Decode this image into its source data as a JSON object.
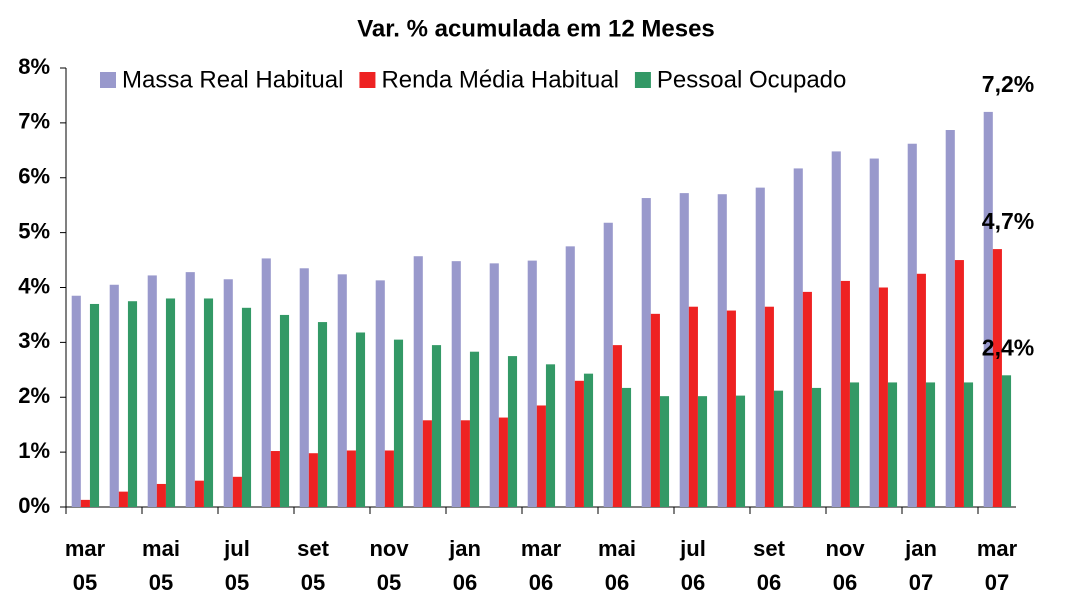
{
  "chart_data": {
    "type": "bar",
    "title": "Var. % acumulada em 12 Meses",
    "categories": [
      [
        "mar",
        "05"
      ],
      null,
      [
        "mai",
        "05"
      ],
      null,
      [
        "jul",
        "05"
      ],
      null,
      [
        "set",
        "05"
      ],
      null,
      [
        "nov",
        "05"
      ],
      null,
      [
        "jan",
        "06"
      ],
      null,
      [
        "mar",
        "06"
      ],
      null,
      [
        "mai",
        "06"
      ],
      null,
      [
        "jul",
        "06"
      ],
      null,
      [
        "set",
        "06"
      ],
      null,
      [
        "nov",
        "06"
      ],
      null,
      [
        "jan",
        "07"
      ],
      null,
      [
        "mar",
        "07"
      ]
    ],
    "series": [
      {
        "name": "Massa Real Habitual",
        "color": "#9999cc",
        "values": [
          3.85,
          4.05,
          4.22,
          4.28,
          4.15,
          4.53,
          4.35,
          4.24,
          4.13,
          4.57,
          4.48,
          4.44,
          4.49,
          4.75,
          5.18,
          5.63,
          5.72,
          5.7,
          5.82,
          6.17,
          6.48,
          6.35,
          6.62,
          6.87,
          7.2
        ],
        "value_labels": [
          null,
          null,
          null,
          null,
          null,
          null,
          null,
          null,
          null,
          null,
          null,
          null,
          null,
          null,
          null,
          null,
          null,
          null,
          null,
          null,
          null,
          null,
          null,
          null,
          "7,2%"
        ]
      },
      {
        "name": "Renda Média Habitual",
        "color": "#ee2222",
        "values": [
          0.13,
          0.28,
          0.42,
          0.48,
          0.55,
          1.02,
          0.98,
          1.03,
          1.03,
          1.58,
          1.58,
          1.63,
          1.85,
          2.3,
          2.95,
          3.52,
          3.65,
          3.58,
          3.65,
          3.92,
          4.12,
          4.0,
          4.25,
          4.5,
          4.7
        ],
        "value_labels": [
          null,
          null,
          null,
          null,
          null,
          null,
          null,
          null,
          null,
          null,
          null,
          null,
          null,
          null,
          null,
          null,
          null,
          null,
          null,
          null,
          null,
          null,
          null,
          null,
          "4,7%"
        ]
      },
      {
        "name": "Pessoal Ocupado",
        "color": "#339966",
        "values": [
          3.7,
          3.75,
          3.8,
          3.8,
          3.63,
          3.5,
          3.37,
          3.18,
          3.05,
          2.95,
          2.83,
          2.75,
          2.6,
          2.43,
          2.17,
          2.02,
          2.02,
          2.03,
          2.12,
          2.17,
          2.27,
          2.27,
          2.27,
          2.27,
          2.4
        ],
        "value_labels": [
          null,
          null,
          null,
          null,
          null,
          null,
          null,
          null,
          null,
          null,
          null,
          null,
          null,
          null,
          null,
          null,
          null,
          null,
          null,
          null,
          null,
          null,
          null,
          null,
          "2,4%"
        ]
      }
    ],
    "ylim": [
      0,
      8
    ],
    "yticks": [
      {
        "value": 0,
        "label": "0%"
      },
      {
        "value": 1,
        "label": "1%"
      },
      {
        "value": 2,
        "label": "2%"
      },
      {
        "value": 3,
        "label": "3%"
      },
      {
        "value": 4,
        "label": "4%"
      },
      {
        "value": 5,
        "label": "5%"
      },
      {
        "value": 6,
        "label": "6%"
      },
      {
        "value": 7,
        "label": "7%"
      },
      {
        "value": 8,
        "label": "8%"
      }
    ],
    "grid": false,
    "legend": "top-left"
  }
}
